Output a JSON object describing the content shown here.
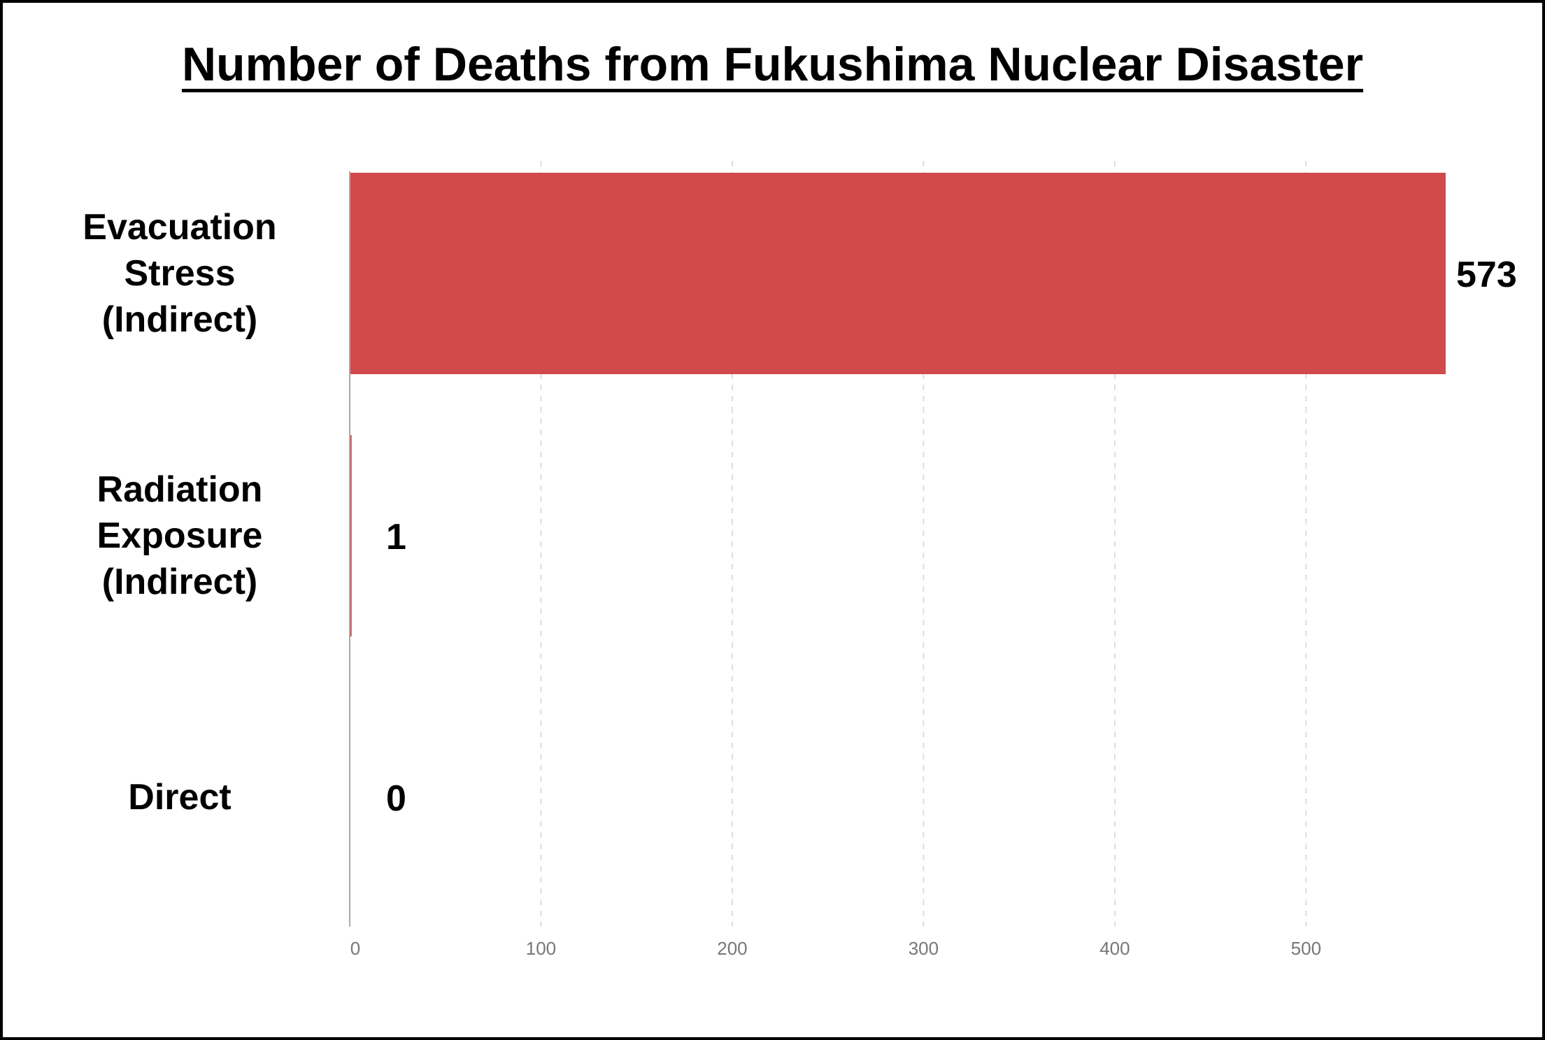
{
  "chart_data": {
    "type": "bar",
    "orientation": "horizontal",
    "title": "Number of Deaths from Fukushima Nuclear Disaster",
    "categories": [
      [
        "Evacuation",
        "Stress",
        "(Indirect)"
      ],
      [
        "Radiation",
        "Exposure",
        "(Indirect)"
      ],
      [
        "Direct"
      ]
    ],
    "values": [
      573,
      1,
      0
    ],
    "data_labels": [
      "573",
      "1",
      "0"
    ],
    "xlim": [
      0,
      573
    ],
    "xticks": [
      0,
      100,
      200,
      300,
      400,
      500
    ],
    "xtick_labels": [
      "0",
      "100",
      "200",
      "300",
      "400",
      "500"
    ],
    "xlabel": "",
    "ylabel": "",
    "grid": "vertical-dashed",
    "legend": "none",
    "bar_color": "#d2494c",
    "grid_color": "#dddddd",
    "axis_color": "#aaaaaa",
    "tick_label_color": "#777777"
  }
}
